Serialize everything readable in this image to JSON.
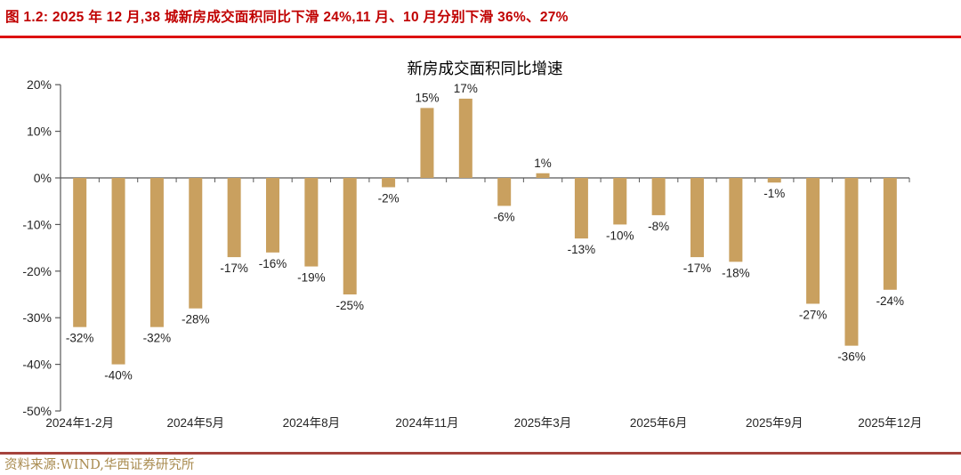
{
  "header": {
    "title": "图 1.2:  2025 年 12 月,38 城新房成交面积同比下滑 24%,11 月、10 月分别下滑 36%、27%"
  },
  "chart_data": {
    "type": "bar",
    "title": "新房成交面积同比增速",
    "unit": "%",
    "values": [
      -32,
      -40,
      -32,
      -28,
      -17,
      -16,
      -19,
      -25,
      -2,
      15,
      17,
      -6,
      1,
      -13,
      -10,
      -8,
      -17,
      -18,
      -1,
      -27,
      -36,
      -24
    ],
    "bar_labels": [
      "-32%",
      "-40%",
      "-32%",
      "-28%",
      "-17%",
      "-16%",
      "-19%",
      "-25%",
      "-2%",
      "15%",
      "17%",
      "-6%",
      "1%",
      "-13%",
      "-10%",
      "-8%",
      "-17%",
      "-18%",
      "-1%",
      "-27%",
      "-36%",
      "-24%"
    ],
    "x_tick_labels": [
      {
        "index": 0,
        "label": "2024年1-2月"
      },
      {
        "index": 3,
        "label": "2024年5月"
      },
      {
        "index": 6,
        "label": "2024年8月"
      },
      {
        "index": 9,
        "label": "2024年11月"
      },
      {
        "index": 12,
        "label": "2025年3月"
      },
      {
        "index": 15,
        "label": "2025年6月"
      },
      {
        "index": 18,
        "label": "2025年9月"
      },
      {
        "index": 21,
        "label": "2025年12月"
      }
    ],
    "y_tick_labels": [
      "20%",
      "10%",
      "0%",
      "-10%",
      "-20%",
      "-30%",
      "-40%",
      "-50%"
    ],
    "y_tick_values": [
      20,
      10,
      0,
      -10,
      -20,
      -30,
      -40,
      -50
    ],
    "ylim": [
      -50,
      20
    ],
    "grid": false,
    "legend_position": "none",
    "bar_color": "#C9A05F",
    "axis_color": "#595959",
    "label_color": "#1F1F1F",
    "tick_label_color": "#262626"
  },
  "footer": {
    "source": "资料来源:WIND,华西证券研究所"
  },
  "theme": {
    "title_color": "#C00000",
    "top_rule_color": "#DD1111",
    "bottom_rule_color": "#A5433C",
    "source_color": "#A98B4F",
    "background": "#FFFFFF"
  }
}
